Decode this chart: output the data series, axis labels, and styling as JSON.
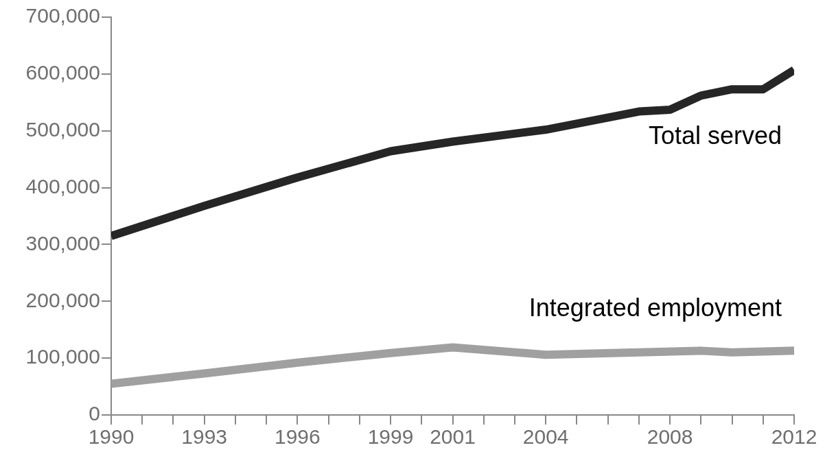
{
  "chart_data": {
    "type": "line",
    "series": [
      {
        "name": "Total served",
        "color": "#262626",
        "x": [
          1990,
          1993,
          1996,
          1999,
          2001,
          2004,
          2007,
          2008,
          2009,
          2010,
          2011,
          2012
        ],
        "values": [
          315000,
          368000,
          418000,
          464000,
          481000,
          502000,
          534000,
          537000,
          562000,
          573000,
          573000,
          607000
        ]
      },
      {
        "name": "Integrated employment",
        "color": "#a0a0a0",
        "x": [
          1990,
          1993,
          1996,
          1999,
          2001,
          2004,
          2009,
          2010,
          2012
        ],
        "values": [
          55000,
          73000,
          92000,
          109000,
          119000,
          106000,
          113000,
          110000,
          113000
        ]
      }
    ],
    "xlim": [
      1990,
      2012
    ],
    "xticks": [
      1990,
      {
        "value": 1991,
        "label": null
      },
      {
        "value": 1992,
        "label": null
      },
      1993,
      {
        "value": 1994,
        "label": null
      },
      {
        "value": 1995,
        "label": null
      },
      1996,
      {
        "value": 1997,
        "label": null
      },
      {
        "value": 1998,
        "label": null
      },
      1999,
      {
        "value": 2000,
        "label": null
      },
      2001,
      {
        "value": 2002,
        "label": null
      },
      {
        "value": 2003,
        "label": null
      },
      2004,
      {
        "value": 2005,
        "label": null
      },
      {
        "value": 2006,
        "label": null
      },
      {
        "value": 2007,
        "label": null
      },
      2008,
      {
        "value": 2009,
        "label": null
      },
      {
        "value": 2010,
        "label": null
      },
      {
        "value": 2011,
        "label": null
      },
      2012
    ],
    "ylim": [
      0,
      700000
    ],
    "yticks": [
      0,
      {
        "value": 100000,
        "label": "100,000"
      },
      {
        "value": 200000,
        "label": "200,000"
      },
      {
        "value": 300000,
        "label": "300,000"
      },
      {
        "value": 400000,
        "label": "400,000"
      },
      {
        "value": 500000,
        "label": "500,000"
      },
      {
        "value": 600000,
        "label": "600,000"
      },
      {
        "value": 700000,
        "label": "700,000"
      }
    ],
    "grid": false,
    "legend": false,
    "marker": "none",
    "line_style": "solid"
  }
}
